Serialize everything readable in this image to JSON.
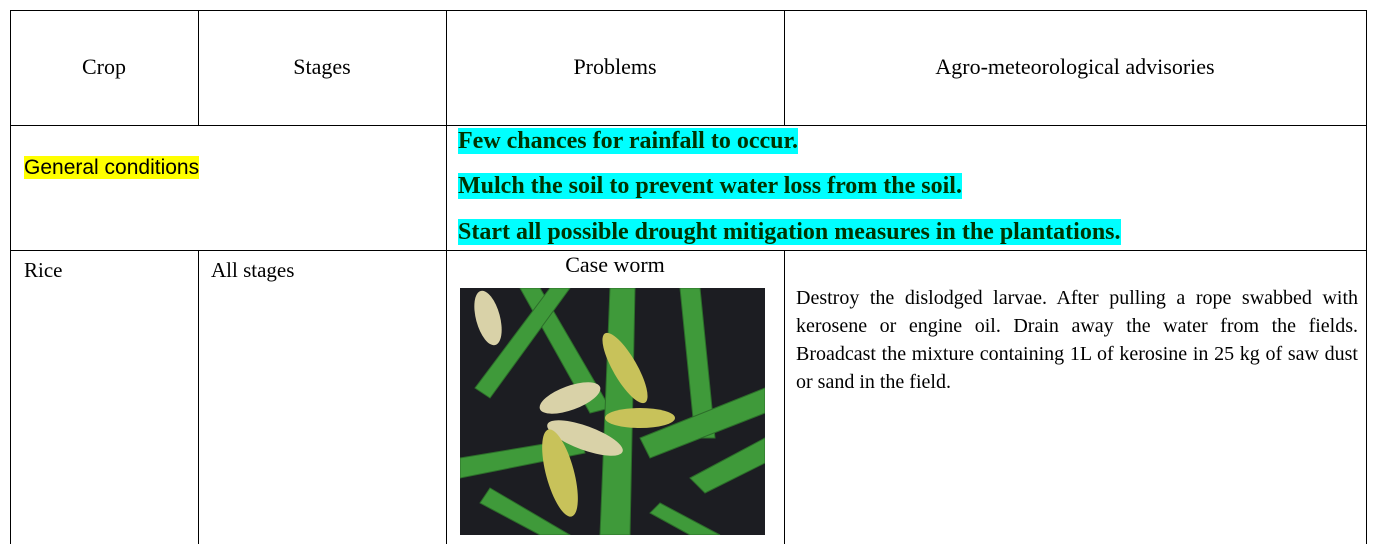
{
  "header": {
    "columns": [
      "Crop",
      "Stages",
      "Problems",
      "Agro-meteorological advisories"
    ]
  },
  "general": {
    "label": "General conditions",
    "advisories": [
      "Few chances for rainfall to occur.",
      "Mulch the soil to prevent water loss from the soil.",
      "Start all possible drought mitigation measures in the plantations."
    ]
  },
  "rows": [
    {
      "crop": "Rice",
      "stage": "All stages",
      "problem": "Case worm",
      "advisory": "Destroy the dislodged larvae. After pulling a rope swabbed with kerosene or engine oil. Drain away the water from the fields. Broadcast the mixture containing 1L of kerosine in 25 kg of saw dust or sand in the field."
    }
  ]
}
